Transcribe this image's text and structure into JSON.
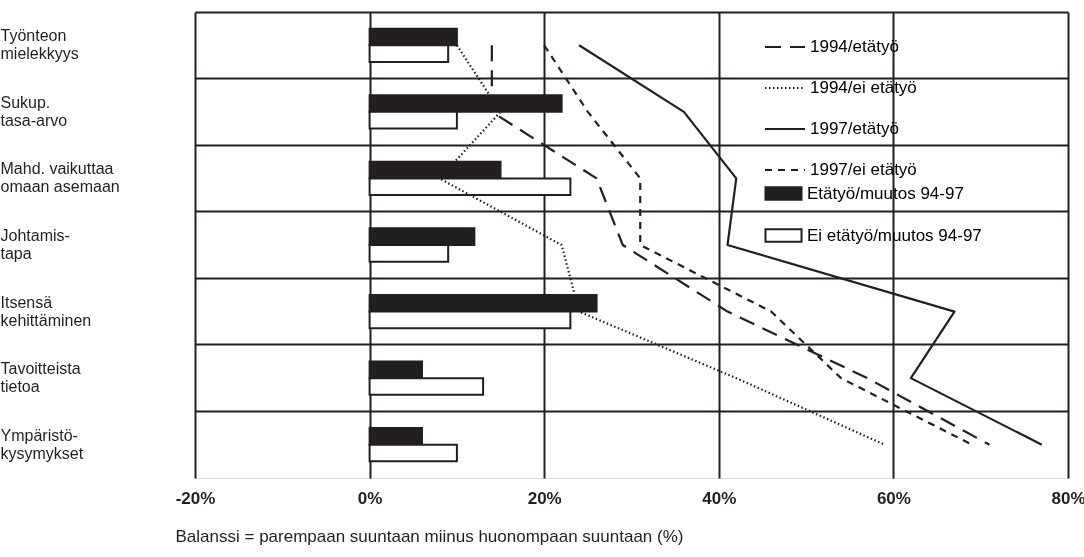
{
  "chart_data": {
    "type": "bar",
    "orientation": "horizontal",
    "xlabel": "Balanssi = parempaan suuntaan miinus huonompaan suuntaan (%)",
    "categories": [
      "Työnteon\nmielekkyys",
      "Sukup.\ntasa-arvo",
      "Mahd. vaikuttaa\nomaan asemaan",
      "Johtamis-\ntapa",
      "Itsensä\nkehittäminen",
      "Tavoitteista\ntietoa",
      "Ympäristö-\nkysymykset"
    ],
    "series": [
      {
        "name": "1994/etätyö",
        "type": "line",
        "line_style": "dashed",
        "color": "#231f20",
        "values": [
          14,
          14,
          26,
          29,
          41,
          57,
          71
        ]
      },
      {
        "name": "1994/ei etätyö",
        "type": "line",
        "line_style": "dotted",
        "color": "#231f20",
        "values": [
          10,
          15,
          8,
          22,
          24,
          42,
          59
        ]
      },
      {
        "name": "1997/etätyö",
        "type": "line",
        "line_style": "solid",
        "color": "#231f20",
        "values": [
          24,
          36,
          42,
          41,
          67,
          62,
          77
        ]
      },
      {
        "name": "1997/ei etätyö",
        "type": "line",
        "line_style": "dashed",
        "color": "#231f20",
        "values": [
          20,
          25,
          31,
          31,
          46,
          54,
          69
        ]
      },
      {
        "name": "Etätyö/muutos 94-97",
        "color": "#231f20",
        "values": [
          10,
          22,
          15,
          12,
          26,
          6,
          6
        ]
      },
      {
        "name": "Ei etätyö/muutos 94-97",
        "color": "#ffffff",
        "values": [
          9,
          10,
          23,
          9,
          23,
          13,
          10
        ]
      }
    ],
    "xlim": [
      -20,
      80
    ],
    "xticks": [
      {
        "value": -20,
        "label": "-20%"
      },
      {
        "value": 0,
        "label": "0%"
      },
      {
        "value": 20,
        "label": "20%"
      },
      {
        "value": 40,
        "label": "40%"
      },
      {
        "value": 60,
        "label": "60%"
      },
      {
        "value": 80,
        "label": "80%"
      }
    ],
    "grid": true,
    "legend": "top right"
  }
}
